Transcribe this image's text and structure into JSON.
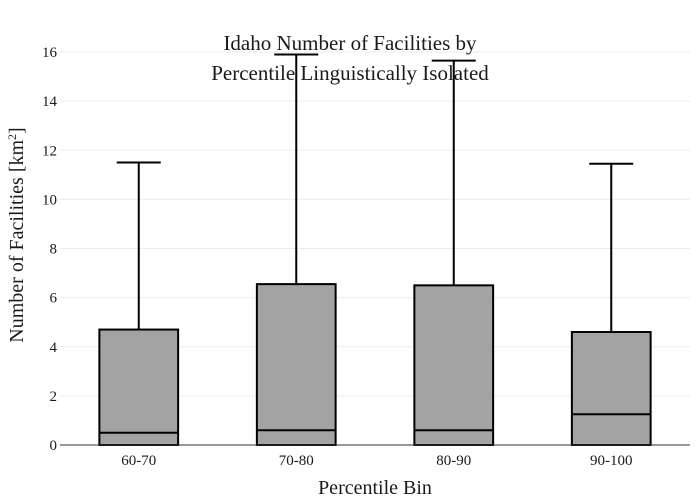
{
  "chart_data": {
    "type": "box",
    "title_lines": [
      "Idaho Number of Facilities by",
      "Percentile Linguistically Isolated"
    ],
    "xlabel": "Percentile Bin",
    "ylabel_main": "Number of Facilities  [km",
    "ylabel_sup": "2",
    "ylabel_end": "]",
    "ylim": [
      0,
      16
    ],
    "yticks": [
      0,
      2,
      4,
      6,
      8,
      10,
      12,
      14,
      16
    ],
    "grid": true,
    "colors": {
      "box_fill": "#a3a3a3",
      "line": "#000000",
      "grid": "#ebebeb"
    },
    "categories": [
      "60-70",
      "70-80",
      "80-90",
      "90-100"
    ],
    "boxes": [
      {
        "category": "60-70",
        "min": 0,
        "q1": 0,
        "median": 0.5,
        "q3": 4.7,
        "max": 11.5
      },
      {
        "category": "70-80",
        "min": 0,
        "q1": 0,
        "median": 0.6,
        "q3": 6.55,
        "max": 15.9
      },
      {
        "category": "80-90",
        "min": 0,
        "q1": 0,
        "median": 0.6,
        "q3": 6.5,
        "max": 15.65
      },
      {
        "category": "90-100",
        "min": 0,
        "q1": 0,
        "median": 1.25,
        "q3": 4.6,
        "max": 11.45
      }
    ]
  }
}
